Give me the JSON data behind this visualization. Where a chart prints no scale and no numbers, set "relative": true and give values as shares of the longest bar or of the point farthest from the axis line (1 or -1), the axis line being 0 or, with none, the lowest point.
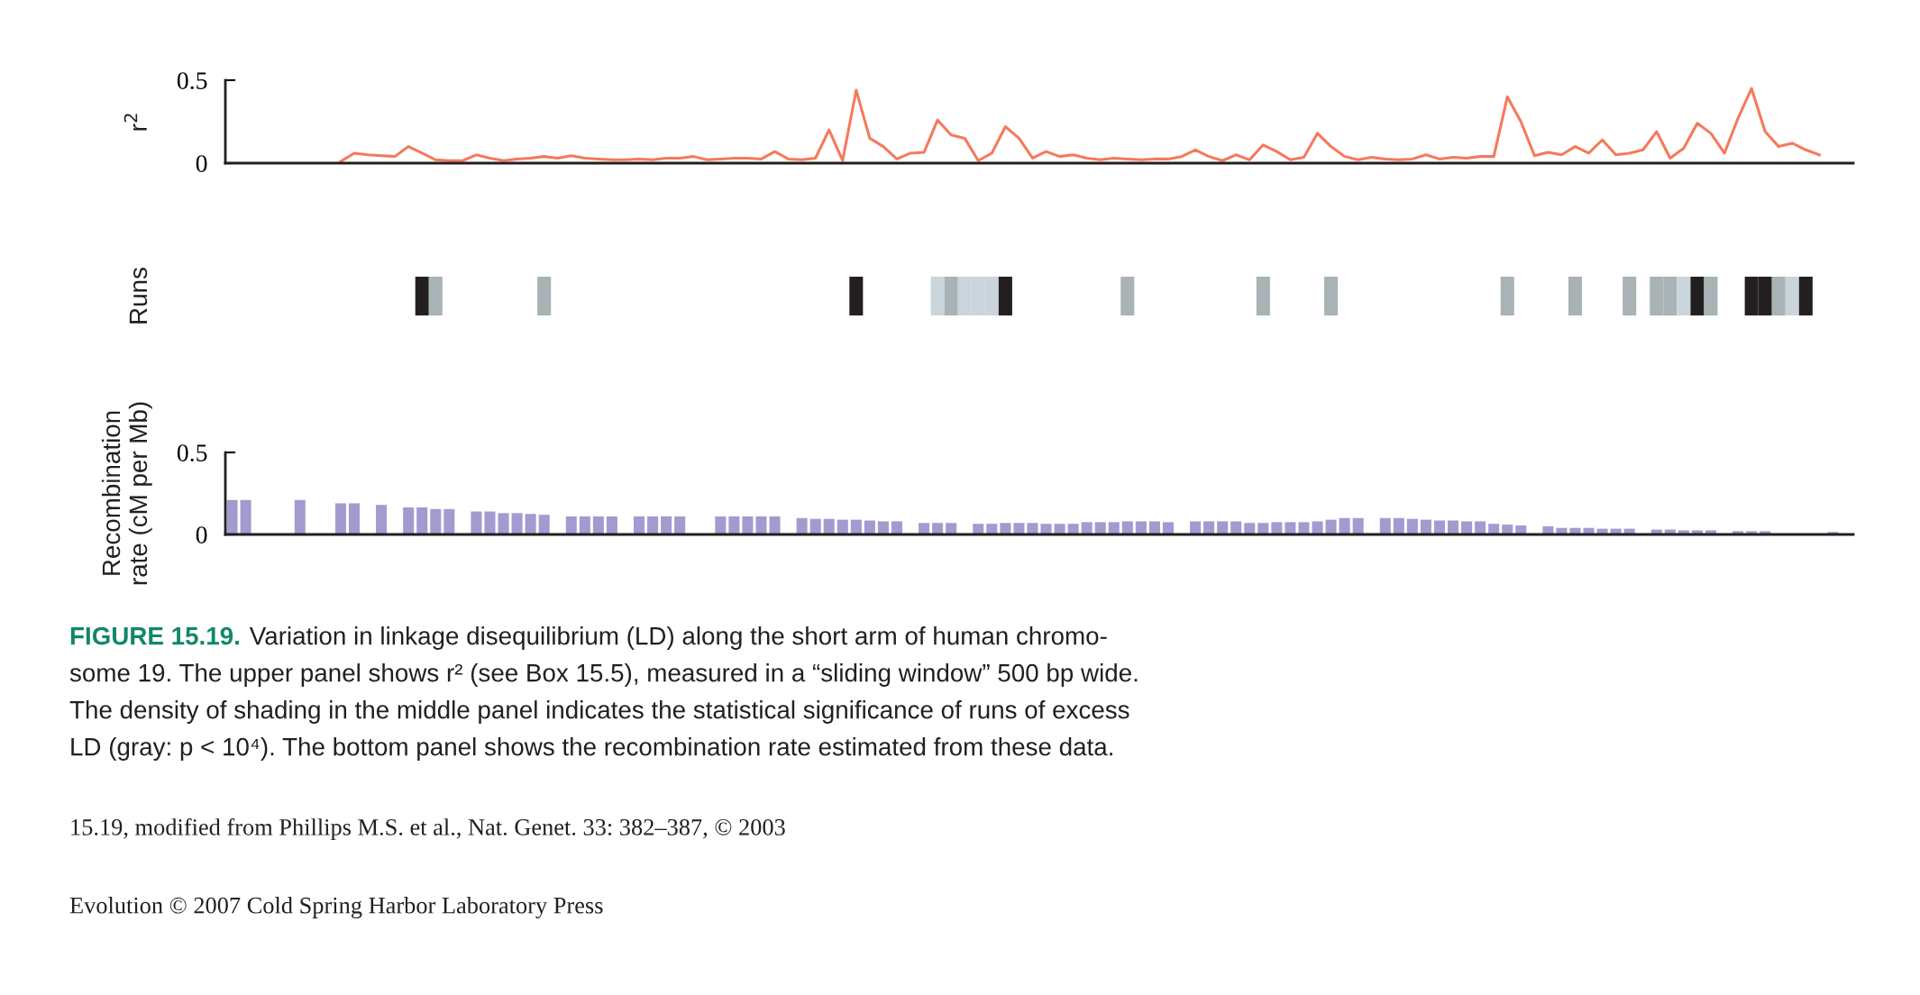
{
  "chart_data": [
    {
      "type": "line",
      "ylabel": "r$^{2}$",
      "categories": [
        null,
        null,
        null,
        null,
        null,
        null,
        null,
        null,
        null,
        null,
        null,
        null,
        null,
        null,
        null,
        null,
        null,
        null,
        null,
        null,
        null,
        null,
        null,
        null,
        null,
        null,
        null,
        null,
        null,
        null,
        null,
        null,
        null,
        null,
        null,
        null,
        null,
        null,
        null,
        null,
        null,
        null,
        null,
        null,
        null,
        null,
        null,
        null,
        null,
        null,
        null,
        null,
        null,
        null,
        null,
        null,
        null,
        null,
        null,
        null,
        null,
        null,
        null,
        null,
        null,
        null,
        null,
        null,
        null,
        null,
        null,
        null,
        null,
        null,
        null,
        null,
        null,
        null,
        null,
        null,
        null,
        null,
        null,
        null,
        null,
        null,
        null,
        null,
        null,
        null,
        null,
        null,
        null,
        null,
        null,
        null,
        null,
        null,
        null,
        null,
        null,
        null,
        null,
        null,
        null,
        null,
        null,
        null,
        null,
        null,
        null,
        null,
        null,
        null,
        null,
        null,
        null,
        null,
        null,
        null
      ],
      "series": [
        {
          "color": "#f47a5c",
          "values": [
            null,
            null,
            null,
            null,
            null,
            null,
            null,
            null,
            0.01,
            0.06,
            0.05,
            0.045,
            0.04,
            0.1,
            0.06,
            0.02,
            0.015,
            0.015,
            0.05,
            0.03,
            0.015,
            0.025,
            0.03,
            0.04,
            0.03,
            0.045,
            0.03,
            0.025,
            0.02,
            0.02,
            0.025,
            0.02,
            0.03,
            0.03,
            0.04,
            0.02,
            0.025,
            0.03,
            0.03,
            0.025,
            0.07,
            0.025,
            0.02,
            0.03,
            0.2,
            0.015,
            0.44,
            0.15,
            0.1,
            0.025,
            0.06,
            0.065,
            0.26,
            0.17,
            0.15,
            0.015,
            0.06,
            0.22,
            0.15,
            0.03,
            0.07,
            0.04,
            0.05,
            0.03,
            0.02,
            0.03,
            0.025,
            0.02,
            0.025,
            0.025,
            0.04,
            0.08,
            0.04,
            0.015,
            0.05,
            0.02,
            0.11,
            0.07,
            0.02,
            0.035,
            0.18,
            0.1,
            0.04,
            0.02,
            0.035,
            0.025,
            0.02,
            0.025,
            0.05,
            0.025,
            0.035,
            0.03,
            0.04,
            0.04,
            0.4,
            0.25,
            0.045,
            0.065,
            0.05,
            0.1,
            0.06,
            0.14,
            0.05,
            0.06,
            0.08,
            0.19,
            0.03,
            0.09,
            0.24,
            0.18,
            0.06,
            0.27,
            0.45,
            0.19,
            0.1,
            0.12,
            0.08,
            0.05,
            null,
            null
          ]
        }
      ],
      "ylim": [
        0,
        0.5
      ],
      "yticks": [
        0,
        0.5
      ],
      "tick_labels": "y",
      "line_style": "solid",
      "marker": "none",
      "grid": false
    },
    {
      "type": "bar",
      "relative": true,
      "ylabel": "Runs",
      "tick_labels": false,
      "categories": [
        null,
        null,
        null,
        null,
        null,
        null,
        null,
        null,
        null,
        null,
        null,
        null,
        null,
        null,
        null,
        null,
        null,
        null,
        null,
        null,
        null,
        null,
        null,
        null,
        null,
        null,
        null,
        null,
        null,
        null,
        null,
        null,
        null,
        null,
        null,
        null,
        null,
        null,
        null,
        null,
        null,
        null,
        null,
        null,
        null,
        null,
        null,
        null,
        null,
        null,
        null,
        null,
        null,
        null,
        null,
        null,
        null,
        null,
        null,
        null,
        null,
        null,
        null,
        null,
        null,
        null,
        null,
        null,
        null,
        null,
        null,
        null,
        null,
        null,
        null,
        null,
        null,
        null,
        null,
        null,
        null,
        null,
        null,
        null,
        null,
        null,
        null,
        null,
        null,
        null,
        null,
        null,
        null,
        null,
        null,
        null,
        null,
        null,
        null,
        null,
        null,
        null,
        null,
        null,
        null,
        null,
        null,
        null,
        null,
        null,
        null,
        null,
        null,
        null,
        null,
        null,
        null,
        null,
        null,
        null
      ],
      "values": [
        null,
        null,
        null,
        null,
        null,
        null,
        null,
        null,
        null,
        null,
        null,
        null,
        null,
        null,
        1,
        1,
        null,
        null,
        null,
        null,
        null,
        null,
        null,
        1,
        null,
        null,
        null,
        null,
        null,
        null,
        null,
        null,
        null,
        null,
        null,
        null,
        null,
        null,
        null,
        null,
        null,
        null,
        null,
        null,
        null,
        null,
        1,
        null,
        null,
        null,
        null,
        null,
        1,
        1,
        1,
        1,
        1,
        1,
        null,
        null,
        null,
        null,
        null,
        null,
        null,
        null,
        1,
        null,
        null,
        null,
        null,
        null,
        null,
        null,
        null,
        null,
        1,
        null,
        null,
        null,
        null,
        1,
        null,
        null,
        null,
        null,
        null,
        null,
        null,
        null,
        null,
        null,
        null,
        null,
        1,
        null,
        null,
        null,
        null,
        1,
        null,
        null,
        null,
        1,
        null,
        1,
        1,
        1,
        1,
        1,
        null,
        null,
        1,
        1,
        1,
        1,
        1,
        null,
        null,
        null
      ],
      "colors": [
        null,
        null,
        null,
        null,
        null,
        null,
        null,
        null,
        null,
        null,
        null,
        null,
        null,
        null,
        "#231f20",
        "#a9b2b4",
        null,
        null,
        null,
        null,
        null,
        null,
        null,
        "#a9b2b4",
        null,
        null,
        null,
        null,
        null,
        null,
        null,
        null,
        null,
        null,
        null,
        null,
        null,
        null,
        null,
        null,
        null,
        null,
        null,
        null,
        null,
        null,
        "#231f20",
        null,
        null,
        null,
        null,
        null,
        "#cad5db",
        "#a9b2b4",
        "#cad5db",
        "#cad5db",
        "#cad5db",
        "#231f20",
        null,
        null,
        null,
        null,
        null,
        null,
        null,
        null,
        "#a9b2b4",
        null,
        null,
        null,
        null,
        null,
        null,
        null,
        null,
        null,
        "#a9b2b4",
        null,
        null,
        null,
        null,
        "#a9b2b4",
        null,
        null,
        null,
        null,
        null,
        null,
        null,
        null,
        null,
        null,
        null,
        null,
        "#a9b2b4",
        null,
        null,
        null,
        null,
        "#a9b2b4",
        null,
        null,
        null,
        "#a9b2b4",
        null,
        "#a9b2b4",
        "#a9b2b4",
        "#cad5db",
        "#231f20",
        "#a9b2b4",
        null,
        null,
        "#231f20",
        "#231f20",
        "#a9b2b4",
        "#cad5db",
        "#231f20",
        null,
        null,
        null
      ]
    },
    {
      "type": "bar",
      "ylabel": "Recombination\nrate (cM per Mb)",
      "color": "#a29bd0",
      "categories": [
        null,
        null,
        null,
        null,
        null,
        null,
        null,
        null,
        null,
        null,
        null,
        null,
        null,
        null,
        null,
        null,
        null,
        null,
        null,
        null,
        null,
        null,
        null,
        null,
        null,
        null,
        null,
        null,
        null,
        null,
        null,
        null,
        null,
        null,
        null,
        null,
        null,
        null,
        null,
        null,
        null,
        null,
        null,
        null,
        null,
        null,
        null,
        null,
        null,
        null,
        null,
        null,
        null,
        null,
        null,
        null,
        null,
        null,
        null,
        null,
        null,
        null,
        null,
        null,
        null,
        null,
        null,
        null,
        null,
        null,
        null,
        null,
        null,
        null,
        null,
        null,
        null,
        null,
        null,
        null,
        null,
        null,
        null,
        null,
        null,
        null,
        null,
        null,
        null,
        null,
        null,
        null,
        null,
        null,
        null,
        null,
        null,
        null,
        null,
        null,
        null,
        null,
        null,
        null,
        null,
        null,
        null,
        null,
        null,
        null,
        null,
        null,
        null,
        null,
        null,
        null,
        null,
        null,
        null,
        null
      ],
      "values": [
        0.21,
        0.21,
        null,
        null,
        null,
        0.21,
        null,
        null,
        0.19,
        0.19,
        null,
        0.18,
        null,
        0.165,
        0.165,
        0.155,
        0.155,
        null,
        0.14,
        0.14,
        0.13,
        0.13,
        0.125,
        0.12,
        null,
        0.11,
        0.11,
        0.11,
        0.11,
        null,
        0.11,
        0.11,
        0.11,
        0.11,
        null,
        null,
        0.11,
        0.11,
        0.11,
        0.11,
        0.11,
        null,
        0.1,
        0.095,
        0.095,
        0.09,
        0.09,
        0.085,
        0.08,
        0.08,
        null,
        0.07,
        0.07,
        0.07,
        null,
        0.065,
        0.065,
        0.07,
        0.07,
        0.07,
        0.065,
        0.065,
        0.065,
        0.075,
        0.075,
        0.075,
        0.08,
        0.08,
        0.08,
        0.075,
        null,
        0.08,
        0.08,
        0.08,
        0.08,
        0.07,
        0.07,
        0.075,
        0.075,
        0.075,
        0.08,
        0.09,
        0.1,
        0.1,
        null,
        0.1,
        0.1,
        0.095,
        0.09,
        0.085,
        0.085,
        0.08,
        0.08,
        0.065,
        0.06,
        0.055,
        null,
        0.05,
        0.04,
        0.04,
        0.04,
        0.035,
        0.035,
        0.035,
        null,
        0.03,
        0.03,
        0.025,
        0.025,
        0.025,
        null,
        0.02,
        0.02,
        0.02,
        null,
        null,
        null,
        null,
        0.015,
        null
      ],
      "ylim": [
        0,
        0.5
      ],
      "yticks": [
        0,
        0.5
      ],
      "tick_labels": "y",
      "grid": false,
      "annotations": [
        "FIGURE 15.19.",
        "Variation in linkage disequilibrium (LD) along the short arm of human chromo-\nsome 19. The upper panel shows r² (see Box 15.5), measured in a “sliding window” 500 bp wide.\nThe density of shading in the middle panel indicates the statistical significance of runs of excess\nLD (gray: p < 10⁴). The bottom panel shows the recombination rate estimated from these data.",
        "15.19, modified from Phillips M.S. et al., Nat. Genet. 33: 382–387, © 2003",
        "Evolution © 2007 Cold Spring Harbor Laboratory Press"
      ]
    }
  ]
}
